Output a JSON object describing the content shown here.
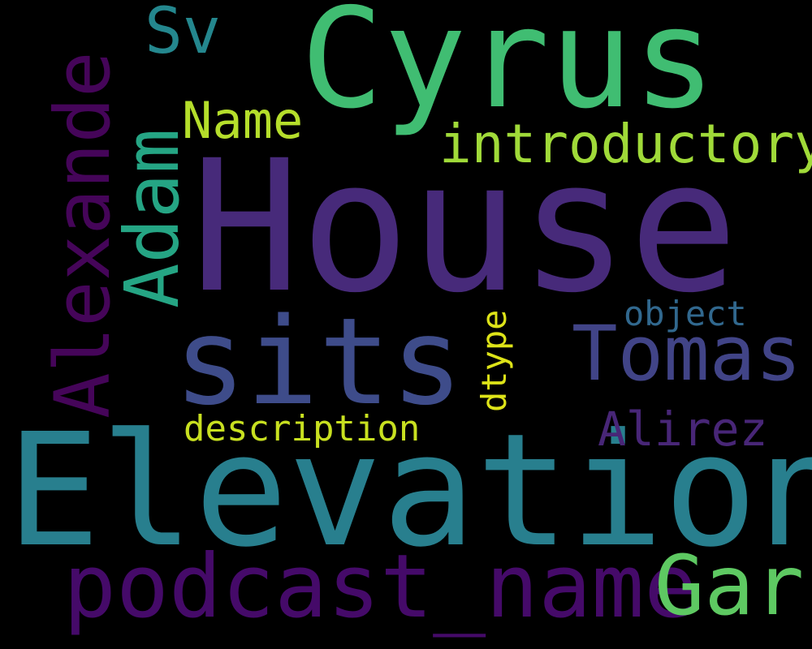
{
  "wordcloud": {
    "words": [
      {
        "text": "House",
        "color": "#472a7a"
      },
      {
        "text": "Elevation",
        "color": "#287f8e"
      },
      {
        "text": "Cyrus",
        "color": "#40bd72"
      },
      {
        "text": "sits",
        "color": "#3e4c8a"
      },
      {
        "text": "podcast_name",
        "color": "#450a69"
      },
      {
        "text": "Alexande",
        "color": "#450559"
      },
      {
        "text": "Adam",
        "color": "#25a584"
      },
      {
        "text": "Tomas",
        "color": "#414487"
      },
      {
        "text": "Gar",
        "color": "#5ec962"
      },
      {
        "text": "Sv",
        "color": "#24878e"
      },
      {
        "text": "introductory",
        "color": "#a0da39"
      },
      {
        "text": "Name",
        "color": "#b5de2b"
      },
      {
        "text": "Alirez",
        "color": "#482677"
      },
      {
        "text": "description",
        "color": "#c8e020"
      },
      {
        "text": "object",
        "color": "#31688e"
      },
      {
        "text": "dtype",
        "color": "#dde318"
      }
    ]
  }
}
